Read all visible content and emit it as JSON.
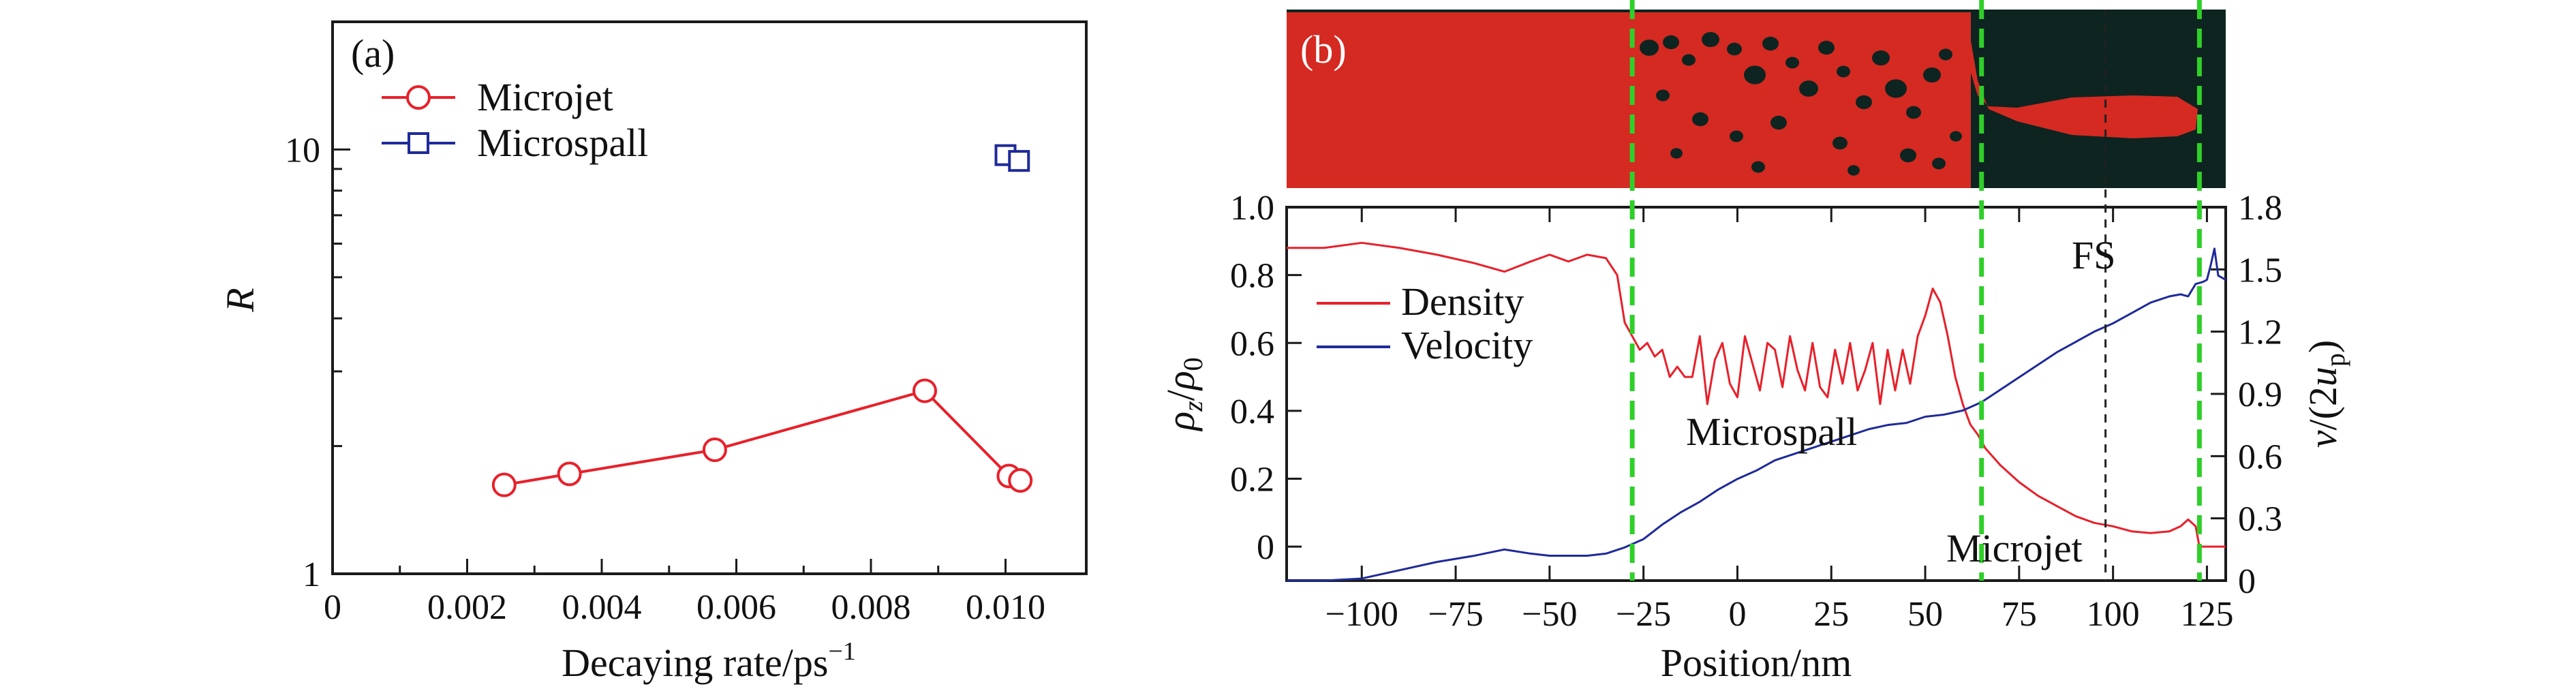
{
  "colors": {
    "red": "#e8202a",
    "blue": "#1f2a9a",
    "green": "#2fcf2a",
    "dark_bg": "#0d2420",
    "material": "#d42a22"
  },
  "chart_data": [
    {
      "panel_label": "(a)",
      "type": "scatter",
      "xlabel": "Decaying rate/ps",
      "xlabel_sup": "−1",
      "ylabel": "R",
      "xlim": [
        0,
        0.0112
      ],
      "ylim": [
        1,
        20
      ],
      "yscale": "log",
      "x_ticks": [
        0,
        0.002,
        0.004,
        0.006,
        0.008,
        0.01
      ],
      "x_tick_labels": [
        "0",
        "0.002",
        "0.004",
        "0.006",
        "0.008",
        "0.010"
      ],
      "y_ticks": [
        1,
        10
      ],
      "y_tick_labels": [
        "1",
        "10"
      ],
      "legend_position": "top-left",
      "series": [
        {
          "name": "Microjet",
          "marker": "circle",
          "line": true,
          "x": [
            0.00255,
            0.00352,
            0.00568,
            0.0088,
            0.01005,
            0.01022
          ],
          "y": [
            1.62,
            1.72,
            1.96,
            2.7,
            1.7,
            1.66
          ]
        },
        {
          "name": "Microspall",
          "marker": "square",
          "line": false,
          "x": [
            0.01,
            0.0102
          ],
          "y": [
            9.7,
            9.4
          ]
        }
      ]
    },
    {
      "panel_label": "(b)",
      "type": "line",
      "xlabel": "Position/nm",
      "ylabel_left": "ρz/ρ0",
      "ylabel_right": "v/(2up)",
      "xlim": [
        -120,
        130
      ],
      "ylim_left": [
        -0.1,
        1.0
      ],
      "ylim_right": [
        0,
        1.8
      ],
      "x_ticks": [
        -100,
        -75,
        -50,
        -25,
        0,
        25,
        50,
        75,
        100,
        125
      ],
      "x_tick_labels": [
        "−100",
        "−75",
        "−50",
        "−25",
        "0",
        "25",
        "50",
        "75",
        "100",
        "125"
      ],
      "y_left_ticks": [
        0,
        0.2,
        0.4,
        0.6,
        0.8,
        1.0
      ],
      "y_left_tick_labels": [
        "0",
        "0.2",
        "0.4",
        "0.6",
        "0.8",
        "1.0"
      ],
      "y_right_ticks": [
        0,
        0.3,
        0.6,
        0.9,
        1.2,
        1.5,
        1.8
      ],
      "y_right_tick_labels": [
        "0",
        "0.3",
        "0.6",
        "0.9",
        "1.2",
        "1.5",
        "1.8"
      ],
      "legend_position": "middle-left",
      "series": [
        {
          "name": "Density",
          "axis": "left",
          "x": [
            -120,
            -110,
            -100,
            -90,
            -80,
            -70,
            -62,
            -55,
            -50,
            -45,
            -40,
            -35,
            -32,
            -30,
            -28,
            -26,
            -24,
            -22,
            -20,
            -18,
            -16,
            -14,
            -12,
            -10,
            -8,
            -6,
            -4,
            -2,
            0,
            2,
            4,
            6,
            8,
            10,
            12,
            14,
            16,
            18,
            20,
            22,
            24,
            26,
            28,
            30,
            32,
            34,
            36,
            38,
            40,
            42,
            44,
            46,
            48,
            50,
            52,
            54,
            56,
            58,
            60,
            62,
            64,
            66,
            70,
            75,
            80,
            85,
            90,
            95,
            100,
            105,
            110,
            115,
            118,
            120,
            122,
            123,
            125,
            128,
            130
          ],
          "y": [
            0.88,
            0.88,
            0.895,
            0.88,
            0.86,
            0.835,
            0.81,
            0.84,
            0.86,
            0.84,
            0.86,
            0.85,
            0.8,
            0.66,
            0.62,
            0.58,
            0.6,
            0.56,
            0.58,
            0.5,
            0.53,
            0.5,
            0.5,
            0.62,
            0.42,
            0.55,
            0.6,
            0.48,
            0.44,
            0.62,
            0.54,
            0.46,
            0.6,
            0.58,
            0.47,
            0.62,
            0.52,
            0.46,
            0.6,
            0.47,
            0.44,
            0.58,
            0.48,
            0.6,
            0.46,
            0.52,
            0.6,
            0.42,
            0.58,
            0.46,
            0.58,
            0.48,
            0.62,
            0.68,
            0.76,
            0.72,
            0.62,
            0.5,
            0.42,
            0.36,
            0.33,
            0.29,
            0.24,
            0.19,
            0.15,
            0.12,
            0.09,
            0.07,
            0.06,
            0.045,
            0.04,
            0.045,
            0.06,
            0.08,
            0.06,
            0.0,
            0.0,
            0.0,
            0.0
          ]
        },
        {
          "name": "Velocity",
          "axis": "right",
          "x": [
            -120,
            -110,
            -100,
            -90,
            -80,
            -70,
            -62,
            -55,
            -50,
            -45,
            -40,
            -35,
            -30,
            -25,
            -20,
            -15,
            -10,
            -5,
            0,
            5,
            10,
            15,
            20,
            25,
            30,
            35,
            40,
            45,
            50,
            55,
            60,
            65,
            70,
            75,
            80,
            85,
            90,
            95,
            100,
            105,
            110,
            115,
            118,
            120,
            122,
            124,
            125,
            126,
            127,
            128,
            130
          ],
          "y": [
            0.0,
            0.0,
            0.01,
            0.05,
            0.09,
            0.12,
            0.15,
            0.13,
            0.12,
            0.12,
            0.12,
            0.13,
            0.16,
            0.2,
            0.27,
            0.33,
            0.38,
            0.44,
            0.49,
            0.53,
            0.58,
            0.61,
            0.64,
            0.67,
            0.7,
            0.73,
            0.75,
            0.76,
            0.79,
            0.8,
            0.82,
            0.86,
            0.92,
            0.98,
            1.04,
            1.1,
            1.15,
            1.2,
            1.24,
            1.29,
            1.34,
            1.37,
            1.38,
            1.37,
            1.43,
            1.44,
            1.45,
            1.52,
            1.6,
            1.47,
            1.45
          ]
        }
      ],
      "vertical_markers": [
        {
          "x": -28,
          "style": "green-dashed"
        },
        {
          "x": 65,
          "style": "green-dashed"
        },
        {
          "x": 98,
          "style": "black-dashed"
        },
        {
          "x": 123,
          "style": "green-dashed"
        }
      ],
      "annotations": [
        {
          "text": "FS"
        },
        {
          "text": "Microspall"
        },
        {
          "text": "Microjet"
        }
      ]
    }
  ]
}
